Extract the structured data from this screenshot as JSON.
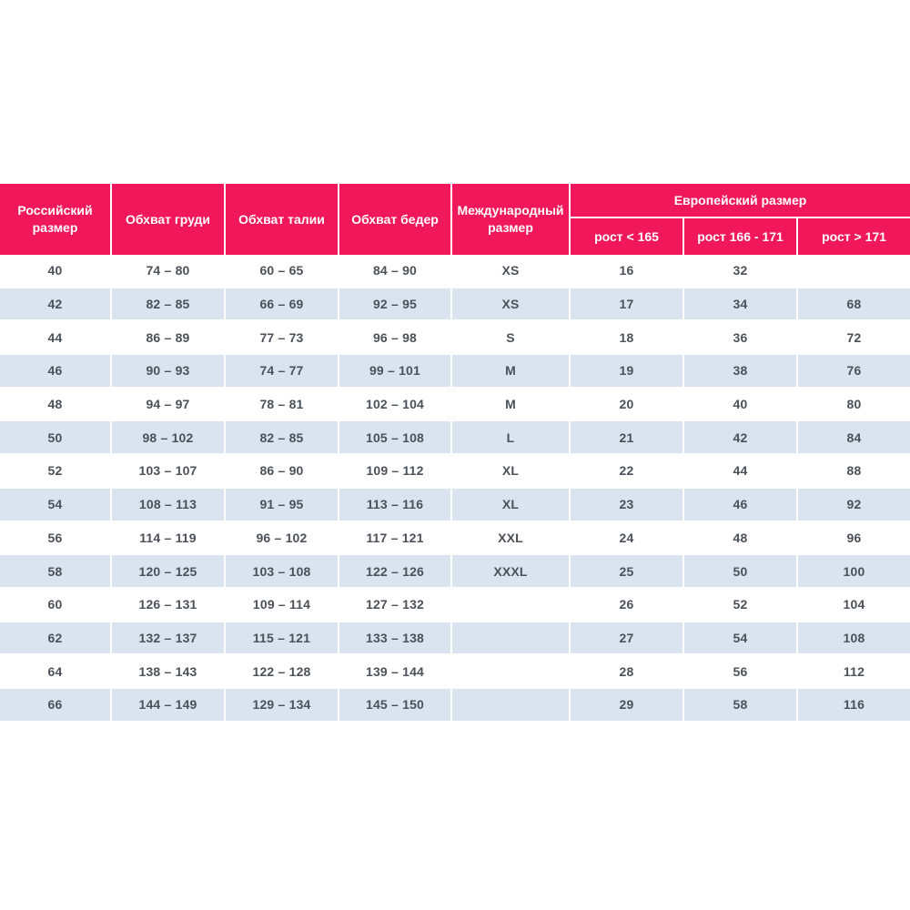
{
  "table": {
    "header": {
      "russian_size": "Российский размер",
      "chest": "Обхват груди",
      "waist": "Обхват талии",
      "hips": "Обхват бедер",
      "international_size": "Международный размер",
      "european_size": "Европейский размер",
      "height_lt": "рост < 165",
      "height_mid": "рост 166 - 171",
      "height_gt": "рост > 171"
    },
    "rows": [
      [
        "40",
        "74 – 80",
        "60 – 65",
        "84 – 90",
        "XS",
        "16",
        "32",
        ""
      ],
      [
        "42",
        "82 – 85",
        "66 – 69",
        "92 – 95",
        "XS",
        "17",
        "34",
        "68"
      ],
      [
        "44",
        "86 – 89",
        "77 – 73",
        "96 – 98",
        "S",
        "18",
        "36",
        "72"
      ],
      [
        "46",
        "90 – 93",
        "74 – 77",
        "99 – 101",
        "M",
        "19",
        "38",
        "76"
      ],
      [
        "48",
        "94 – 97",
        "78 – 81",
        "102 – 104",
        "M",
        "20",
        "40",
        "80"
      ],
      [
        "50",
        "98 – 102",
        "82 – 85",
        "105 – 108",
        "L",
        "21",
        "42",
        "84"
      ],
      [
        "52",
        "103 – 107",
        "86 – 90",
        "109 – 112",
        "XL",
        "22",
        "44",
        "88"
      ],
      [
        "54",
        "108 – 113",
        "91 – 95",
        "113 – 116",
        "XL",
        "23",
        "46",
        "92"
      ],
      [
        "56",
        "114 – 119",
        "96 – 102",
        "117 – 121",
        "XXL",
        "24",
        "48",
        "96"
      ],
      [
        "58",
        "120 – 125",
        "103 – 108",
        "122 – 126",
        "XXXL",
        "25",
        "50",
        "100"
      ],
      [
        "60",
        "126 – 131",
        "109 – 114",
        "127 – 132",
        "",
        "26",
        "52",
        "104"
      ],
      [
        "62",
        "132 – 137",
        "115 – 121",
        "133 – 138",
        "",
        "27",
        "54",
        "108"
      ],
      [
        "64",
        "138 – 143",
        "122 – 128",
        "139 – 144",
        "",
        "28",
        "56",
        "112"
      ],
      [
        "66",
        "144 – 149",
        "129 – 134",
        "145 – 150",
        "",
        "29",
        "58",
        "116"
      ]
    ]
  },
  "colors": {
    "header_bg": "#F0175A",
    "header_text": "#FFFFFF",
    "stripe_bg": "#DAE4F1",
    "cell_text": "#4A5158"
  }
}
